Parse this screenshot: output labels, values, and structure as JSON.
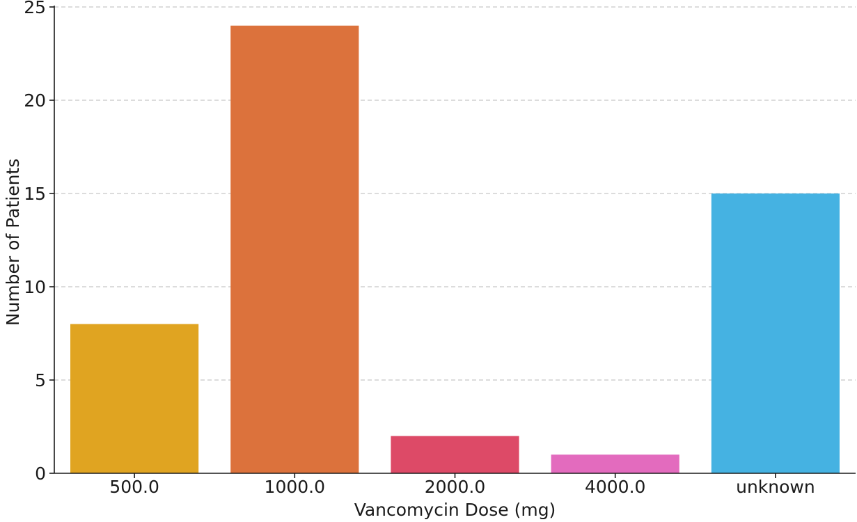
{
  "chart_data": {
    "type": "bar",
    "title": "",
    "xlabel": "Vancomycin Dose (mg)",
    "ylabel": "Number of Patients",
    "categories": [
      "500.0",
      "1000.0",
      "2000.0",
      "4000.0",
      "unknown"
    ],
    "values": [
      8,
      24,
      2,
      1,
      15
    ],
    "colors": [
      "#e0a421",
      "#dc723c",
      "#dd4a67",
      "#e36bbe",
      "#45b2e2"
    ],
    "ylim": [
      0,
      25
    ],
    "yticks": [
      0,
      5,
      10,
      15,
      20,
      25
    ],
    "grid": "y-dashed",
    "legend": "none"
  }
}
